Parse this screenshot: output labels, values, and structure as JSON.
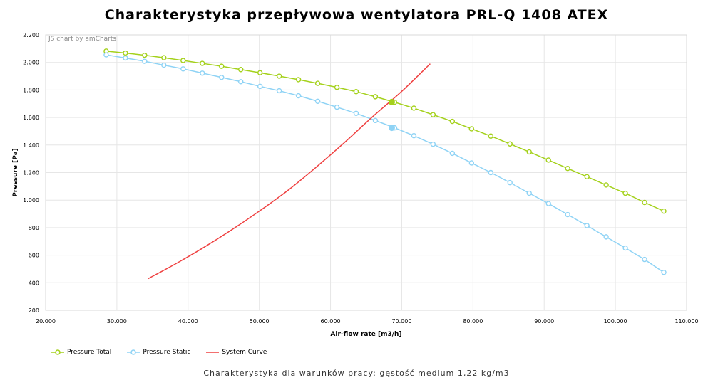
{
  "chart_data": {
    "type": "line",
    "title": "Charakterystyka przepływowa wentylatora PRL-Q 1408 ATEX",
    "subtitle": "Charakterystyka dla warunków pracy: gęstość medium 1,22 kg/m3",
    "credit": "JS chart by amCharts",
    "xlabel": "Air-flow rate [m3/h]",
    "ylabel": "Pressure [Pa]",
    "xlim": [
      20000,
      110000
    ],
    "ylim": [
      200,
      2200
    ],
    "x_ticks": [
      "20.000",
      "30.000",
      "40.000",
      "50.000",
      "60.000",
      "70.000",
      "80.000",
      "90.000",
      "100.000",
      "110.000"
    ],
    "y_ticks": [
      "200",
      "400",
      "600",
      "800",
      "1.000",
      "1.200",
      "1.400",
      "1.600",
      "1.800",
      "2.000",
      "2.200"
    ],
    "grid": true,
    "legend_position": "bottom-left",
    "series": [
      {
        "name": "Pressure Total",
        "color": "#a4d11b",
        "marker": "circle",
        "x": [
          28500,
          31200,
          33900,
          36600,
          39300,
          42000,
          44700,
          47400,
          50100,
          52800,
          55500,
          58200,
          60900,
          63600,
          66300,
          69000,
          71700,
          74400,
          77100,
          79800,
          82500,
          85200,
          87900,
          90600,
          93300,
          96000,
          98700,
          101400,
          104100,
          106800
        ],
        "y": [
          2082,
          2068,
          2052,
          2034,
          2014,
          1993,
          1972,
          1948,
          1925,
          1900,
          1875,
          1848,
          1819,
          1788,
          1751,
          1711,
          1668,
          1620,
          1572,
          1518,
          1465,
          1408,
          1350,
          1291,
          1230,
          1170,
          1110,
          1050,
          983,
          920
        ]
      },
      {
        "name": "Pressure Static",
        "color": "#8fd3f5",
        "marker": "circle",
        "x": [
          28500,
          31200,
          33900,
          36600,
          39300,
          42000,
          44700,
          47400,
          50100,
          52800,
          55500,
          58200,
          60900,
          63600,
          66300,
          69000,
          71700,
          74400,
          77100,
          79800,
          82500,
          85200,
          87900,
          90600,
          93300,
          96000,
          98700,
          101400,
          104100,
          106800
        ],
        "y": [
          2055,
          2032,
          2008,
          1980,
          1953,
          1922,
          1891,
          1860,
          1826,
          1794,
          1758,
          1718,
          1675,
          1630,
          1578,
          1525,
          1468,
          1406,
          1340,
          1270,
          1200,
          1127,
          1050,
          975,
          895,
          815,
          733,
          652,
          569,
          475
        ]
      },
      {
        "name": "System Curve",
        "color": "#ef4040",
        "marker": "none",
        "x": [
          34400,
          38000,
          42000,
          46000,
          50000,
          54000,
          58000,
          62000,
          66000,
          70000,
          74000
        ],
        "y": [
          430,
          530,
          650,
          780,
          920,
          1070,
          1240,
          1420,
          1610,
          1790,
          1990
        ]
      }
    ],
    "operating_points": [
      {
        "series": "Pressure Total",
        "x": 68600,
        "y": 1712
      },
      {
        "series": "Pressure Static",
        "x": 68600,
        "y": 1525
      }
    ]
  }
}
